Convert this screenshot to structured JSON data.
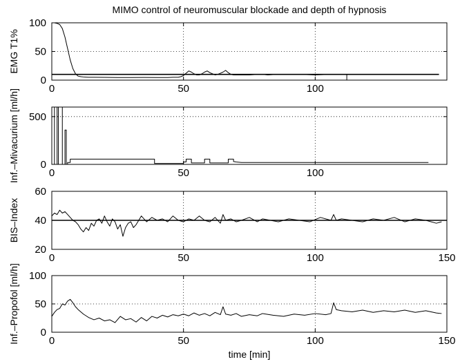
{
  "figure": {
    "title": "MIMO control of neuromuscular blockade and depth of hypnosis"
  },
  "chart_data": [
    {
      "type": "line",
      "id": "emg",
      "title": "MIMO control of neuromuscular blockade and depth of hypnosis",
      "ylabel": "EMG T1%",
      "xlim": [
        0,
        150
      ],
      "ylim": [
        0,
        100
      ],
      "xticks": [
        0,
        50,
        100
      ],
      "yticks": [
        0,
        50,
        100
      ],
      "grid": true,
      "reference": {
        "y": 10,
        "x_start": 0,
        "x_end": 147
      },
      "series": [
        {
          "x": [
            0,
            1,
            2,
            3,
            4,
            5,
            6,
            7,
            8,
            9,
            10,
            11,
            12,
            14,
            16,
            20,
            25,
            30,
            35,
            40,
            44,
            46,
            48,
            49,
            50,
            51,
            52,
            53,
            54,
            55,
            56,
            57,
            58,
            59,
            60,
            61,
            62,
            63,
            64,
            65,
            66,
            67,
            68,
            69,
            70,
            72,
            75,
            78,
            80,
            82,
            85,
            88,
            90,
            95,
            100,
            105,
            110,
            112,
            112,
            112,
            113,
            115,
            120,
            125,
            130,
            135,
            140,
            143
          ],
          "y": [
            100,
            100,
            99,
            97,
            90,
            75,
            55,
            35,
            20,
            11,
            7,
            6,
            5.5,
            5,
            5,
            4.8,
            4.5,
            4.5,
            4.6,
            4.5,
            4.5,
            5,
            5,
            6,
            8,
            12,
            16,
            14,
            11,
            9,
            9,
            11,
            14,
            16,
            13,
            11,
            9,
            10,
            12,
            14,
            17,
            13,
            10,
            9,
            9,
            9,
            9,
            10,
            10,
            9,
            10,
            10,
            10,
            10,
            9,
            10,
            10,
            10,
            0,
            10,
            10,
            10,
            10,
            10,
            10,
            10,
            10,
            10
          ]
        }
      ]
    },
    {
      "type": "line",
      "id": "mivacurium",
      "ylabel": "Inf.–Mivacurium [ml/h]",
      "xlim": [
        0,
        150
      ],
      "ylim": [
        0,
        600
      ],
      "xticks": [
        0,
        50,
        100
      ],
      "yticks": [
        0,
        500
      ],
      "grid": true,
      "series": [
        {
          "x": [
            0,
            1,
            1,
            2,
            2,
            2.5,
            2.5,
            4,
            4,
            5,
            5,
            5.5,
            5.5,
            6,
            6,
            7,
            7,
            39,
            39,
            50,
            50,
            51,
            51,
            53,
            53,
            58,
            58,
            60,
            60,
            67,
            67,
            69,
            69,
            70,
            72,
            80,
            90,
            100,
            110,
            120,
            130,
            140,
            143
          ],
          "y": [
            0,
            0,
            600,
            600,
            0,
            0,
            600,
            600,
            0,
            0,
            360,
            360,
            0,
            0,
            20,
            20,
            55,
            55,
            10,
            10,
            25,
            25,
            55,
            55,
            15,
            15,
            55,
            55,
            15,
            15,
            55,
            55,
            30,
            25,
            20,
            20,
            20,
            20,
            20,
            20,
            20,
            20,
            20
          ]
        }
      ]
    },
    {
      "type": "line",
      "id": "bis",
      "ylabel": "BIS–Index",
      "xlim": [
        0,
        150
      ],
      "ylim": [
        20,
        60
      ],
      "xticks": [
        0,
        50,
        100,
        150
      ],
      "yticks": [
        20,
        40,
        60
      ],
      "grid": true,
      "reference": {
        "y": 40,
        "x_start": 0,
        "x_end": 150
      },
      "series": [
        {
          "x": [
            0,
            1,
            2,
            3,
            4,
            5,
            6,
            7,
            8,
            9,
            10,
            11,
            12,
            13,
            14,
            15,
            16,
            17,
            18,
            19,
            20,
            21,
            22,
            23,
            24,
            25,
            26,
            27,
            28,
            29,
            30,
            31,
            32,
            33,
            34,
            35,
            36,
            38,
            40,
            42,
            44,
            46,
            48,
            50,
            52,
            54,
            56,
            58,
            60,
            62,
            64,
            65,
            66,
            68,
            70,
            72,
            75,
            78,
            80,
            83,
            86,
            90,
            94,
            98,
            102,
            106,
            107,
            108,
            110,
            114,
            118,
            122,
            126,
            130,
            134,
            138,
            142,
            146,
            148
          ],
          "y": [
            43,
            45,
            44,
            47,
            45,
            46,
            44,
            42,
            40,
            39,
            37,
            34,
            32,
            35,
            33,
            38,
            36,
            40,
            41,
            38,
            43,
            39,
            36,
            41,
            39,
            34,
            37,
            29,
            35,
            38,
            39,
            35,
            37,
            40,
            43,
            41,
            39,
            42,
            40,
            41,
            39,
            43,
            40,
            39,
            41,
            40,
            43,
            40,
            39,
            42,
            38,
            44,
            40,
            41,
            39,
            40,
            42,
            39,
            41,
            40,
            39,
            41,
            40,
            39,
            42,
            40,
            44,
            40,
            41,
            40,
            39,
            41,
            40,
            42,
            39,
            41,
            40,
            38,
            39
          ]
        }
      ]
    },
    {
      "type": "line",
      "id": "propofol",
      "ylabel": "Inf.–Propofol [ml/h]",
      "xlabel": "time [min]",
      "xlim": [
        0,
        150
      ],
      "ylim": [
        0,
        100
      ],
      "xticks": [
        0,
        50,
        100,
        150
      ],
      "yticks": [
        0,
        50,
        100
      ],
      "grid": true,
      "series": [
        {
          "x": [
            0,
            1,
            2,
            3,
            4,
            5,
            6,
            7,
            8,
            9,
            10,
            12,
            14,
            16,
            18,
            20,
            22,
            24,
            26,
            28,
            30,
            32,
            34,
            36,
            38,
            40,
            42,
            44,
            46,
            48,
            50,
            52,
            54,
            56,
            58,
            60,
            62,
            64,
            65,
            66,
            68,
            70,
            72,
            75,
            78,
            80,
            84,
            88,
            92,
            96,
            100,
            104,
            106,
            107,
            108,
            110,
            114,
            118,
            122,
            126,
            130,
            134,
            138,
            142,
            146,
            148
          ],
          "y": [
            28,
            35,
            40,
            42,
            50,
            48,
            55,
            58,
            52,
            45,
            40,
            32,
            26,
            22,
            25,
            20,
            22,
            17,
            28,
            22,
            24,
            18,
            26,
            20,
            28,
            25,
            30,
            27,
            31,
            29,
            32,
            29,
            34,
            30,
            33,
            29,
            35,
            31,
            45,
            32,
            30,
            33,
            28,
            31,
            29,
            33,
            30,
            28,
            32,
            30,
            33,
            31,
            33,
            52,
            40,
            38,
            36,
            39,
            35,
            38,
            36,
            39,
            35,
            38,
            34,
            33
          ]
        }
      ]
    }
  ]
}
